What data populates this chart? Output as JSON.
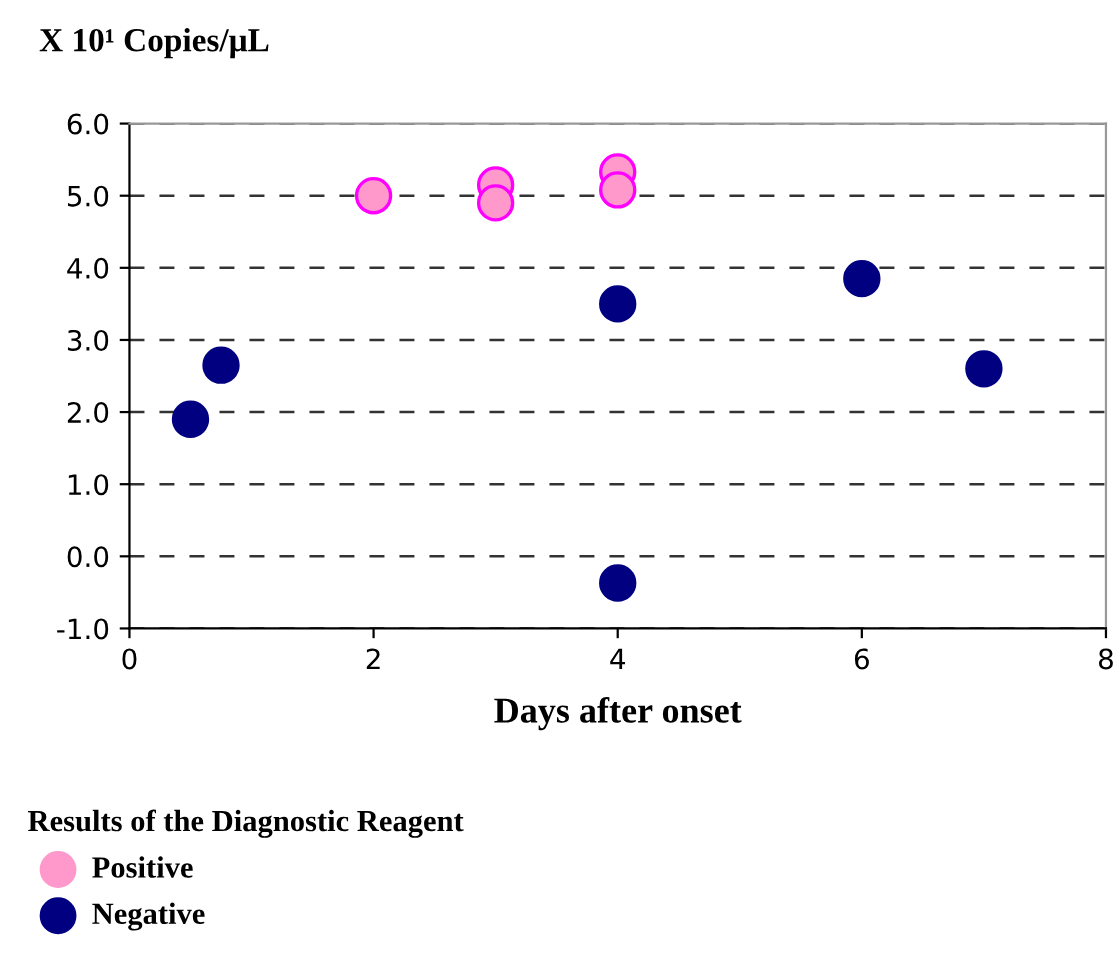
{
  "chart_data": {
    "type": "scatter",
    "ylabel": "X 10¹ Copies/μL",
    "xlabel": "Days after onset",
    "legend_title": "Results of the Diagnostic Reagent",
    "series": [
      {
        "name": "Positive",
        "color": "#ff99cc",
        "x": [
          2,
          3,
          3,
          4,
          4
        ],
        "values": [
          5.0,
          5.15,
          4.9,
          5.33,
          5.08
        ]
      },
      {
        "name": "Negative",
        "color": "#000080",
        "x": [
          0.5,
          0.75,
          4,
          4,
          6,
          7
        ],
        "values": [
          1.9,
          2.65,
          3.5,
          -0.37,
          3.85,
          2.6
        ]
      }
    ],
    "xlim": [
      0,
      8
    ],
    "xticks": [
      0,
      2,
      4,
      6,
      8
    ],
    "ylim": [
      -1,
      6
    ],
    "yticks": [
      {
        "value": -1,
        "label": "-1.0"
      },
      {
        "value": 0,
        "label": "0.0"
      },
      {
        "value": 1,
        "label": "1.0"
      },
      {
        "value": 2,
        "label": "2.0"
      },
      {
        "value": 3,
        "label": "3.0"
      },
      {
        "value": 4,
        "label": "4.0"
      },
      {
        "value": 5,
        "label": "5.0"
      },
      {
        "value": 6,
        "label": "6.0"
      }
    ],
    "grid": "y",
    "legend": "bottom",
    "marker": "circle"
  }
}
